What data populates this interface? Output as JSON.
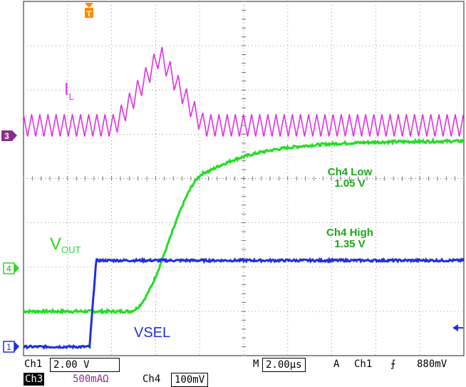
{
  "chart_data": {
    "type": "line",
    "x_divisions": 10,
    "y_divisions": 8,
    "grid": true,
    "annotations": {
      "trace_il": "I",
      "trace_il_sub": "L",
      "trace_vout": "V",
      "trace_vout_sub": "OUT",
      "trace_vsel": "VSEL",
      "cursor_low_label": "Ch4 Low",
      "cursor_low_value": "1.05 V",
      "cursor_high_label": "Ch4 High",
      "cursor_high_value": "1.35 V"
    },
    "channel_markers": [
      "3",
      "4",
      "1"
    ],
    "trigger_marker": "T",
    "series": [
      {
        "name": "I",
        "color": "#e030e0",
        "baseline_div": 5.2,
        "ripple_div": 0.25,
        "bump": {
          "start_div": 2.05,
          "peak_div": 3.1,
          "end_div": 4.1,
          "peak_level_div": 6.8
        }
      },
      {
        "name": "VOUT",
        "color": "#22dd22",
        "low_div": 1.0,
        "high_div": 4.85,
        "rise_start_div": 2.4,
        "rise_end_div": 4.2
      },
      {
        "name": "VSEL",
        "color": "#1f2fe0",
        "low_div": 0.2,
        "high_div": 2.15,
        "step_div": 1.5
      }
    ]
  },
  "status": {
    "ch1_label": "Ch1",
    "ch1_scale": "2.00 V",
    "ch3_label": "Ch3",
    "ch3_scale": "500mA",
    "ch3_unit": "Ω",
    "ch4_label": "Ch4",
    "ch4_scale": "100mV",
    "timebase_prefix": "M",
    "timebase": "2.00µs",
    "trigger_prefix": "A",
    "trigger_channel": "Ch1",
    "trigger_slope": "⨍",
    "trigger_level": "880mV"
  },
  "colors": {
    "il": "#e030e0",
    "vout": "#22dd22",
    "vsel": "#1f2fe0",
    "vout_text": "#1ba81b",
    "trigger": "#ff8800",
    "ch3_marker": "#8b2f8b"
  }
}
